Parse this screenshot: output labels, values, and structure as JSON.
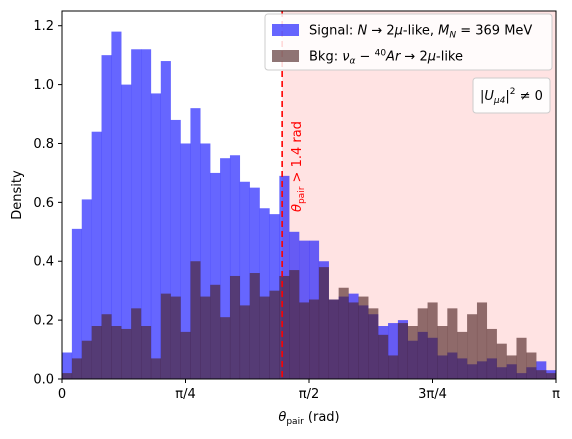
{
  "chart_data": {
    "type": "bar",
    "x_unit": "rad",
    "bin_width": 0.0628319,
    "xlim": [
      0,
      3.14159
    ],
    "ylim": [
      0,
      1.25
    ],
    "xlabel": "θpair (rad)",
    "xlabel_main": "θ",
    "xlabel_sub": "pair",
    "xlabel_tail": " (rad)",
    "ylabel": "Density",
    "xticks": [
      {
        "value": 0,
        "label": "0"
      },
      {
        "value": 0.785398,
        "label": "π/4"
      },
      {
        "value": 1.570796,
        "label": "π/2"
      },
      {
        "value": 2.356194,
        "label": "3π/4"
      },
      {
        "value": 3.141593,
        "label": "π"
      }
    ],
    "yticks": [
      {
        "value": 0.0,
        "label": "0.0"
      },
      {
        "value": 0.2,
        "label": "0.2"
      },
      {
        "value": 0.4,
        "label": "0.4"
      },
      {
        "value": 0.6,
        "label": "0.6"
      },
      {
        "value": 0.8,
        "label": "0.8"
      },
      {
        "value": 1.0,
        "label": "1.0"
      },
      {
        "value": 1.2,
        "label": "1.2"
      }
    ],
    "series": [
      {
        "name": "Signal: N→2μ-like, MN = 369 MeV",
        "color": "#0000ff",
        "opacity": 0.6,
        "values": [
          0.09,
          0.51,
          0.61,
          0.84,
          1.1,
          1.18,
          1.0,
          1.12,
          1.12,
          0.97,
          1.08,
          0.88,
          0.8,
          0.92,
          0.8,
          0.7,
          0.75,
          0.76,
          0.67,
          0.65,
          0.58,
          0.56,
          0.69,
          0.5,
          0.47,
          0.47,
          0.4,
          0.27,
          0.28,
          0.29,
          0.25,
          0.22,
          0.18,
          0.19,
          0.2,
          0.13,
          0.16,
          0.14,
          0.08,
          0.09,
          0.07,
          0.05,
          0.06,
          0.07,
          0.04,
          0.05,
          0.02,
          0.04,
          0.06,
          0.03
        ]
      },
      {
        "name": "Bkg: να−40Ar→2μ-like",
        "color": "#4a2121",
        "opacity": 0.62,
        "values": [
          0.02,
          0.07,
          0.13,
          0.18,
          0.22,
          0.18,
          0.17,
          0.24,
          0.18,
          0.07,
          0.29,
          0.28,
          0.16,
          0.4,
          0.28,
          0.32,
          0.21,
          0.35,
          0.25,
          0.36,
          0.28,
          0.3,
          0.35,
          0.37,
          0.26,
          0.27,
          0.38,
          0.27,
          0.31,
          0.26,
          0.28,
          0.24,
          0.15,
          0.08,
          0.19,
          0.18,
          0.24,
          0.26,
          0.18,
          0.24,
          0.16,
          0.22,
          0.26,
          0.17,
          0.12,
          0.08,
          0.14,
          0.09,
          0.03,
          0.02
        ]
      }
    ],
    "markers": [
      {
        "type": "vline",
        "x": 1.4,
        "color": "#ff0000",
        "style": "dashed",
        "label": "θpair > 1.4 rad",
        "label_main": "θ",
        "label_sub": "pair",
        "label_tail": " > 1.4 rad"
      },
      {
        "type": "shaded_region",
        "x_from": 1.4,
        "x_to": 3.141593,
        "color": "#ff0000",
        "opacity": 0.11
      }
    ],
    "legend": {
      "placement": "upper right",
      "entries": [
        {
          "label_html": "Signal: <tspan font-style='italic'>N</tspan> → 2<tspan font-style='italic'>μ</tspan>-like, <tspan font-style='italic'>M</tspan><tspan font-size='9' baseline-shift='-3' font-style='italic'>N</tspan> = 369 MeV"
        },
        {
          "label_html": "Bkg: <tspan font-style='italic'>ν</tspan><tspan font-size='9' baseline-shift='-3' font-style='italic'>α</tspan> − <tspan font-size='9' baseline-shift='5'>40</tspan><tspan font-style='italic'>Ar</tspan> → 2<tspan font-style='italic'>μ</tspan>-like"
        }
      ]
    },
    "annotation": "|Uμ4|² ≠ 0",
    "grid": false
  }
}
